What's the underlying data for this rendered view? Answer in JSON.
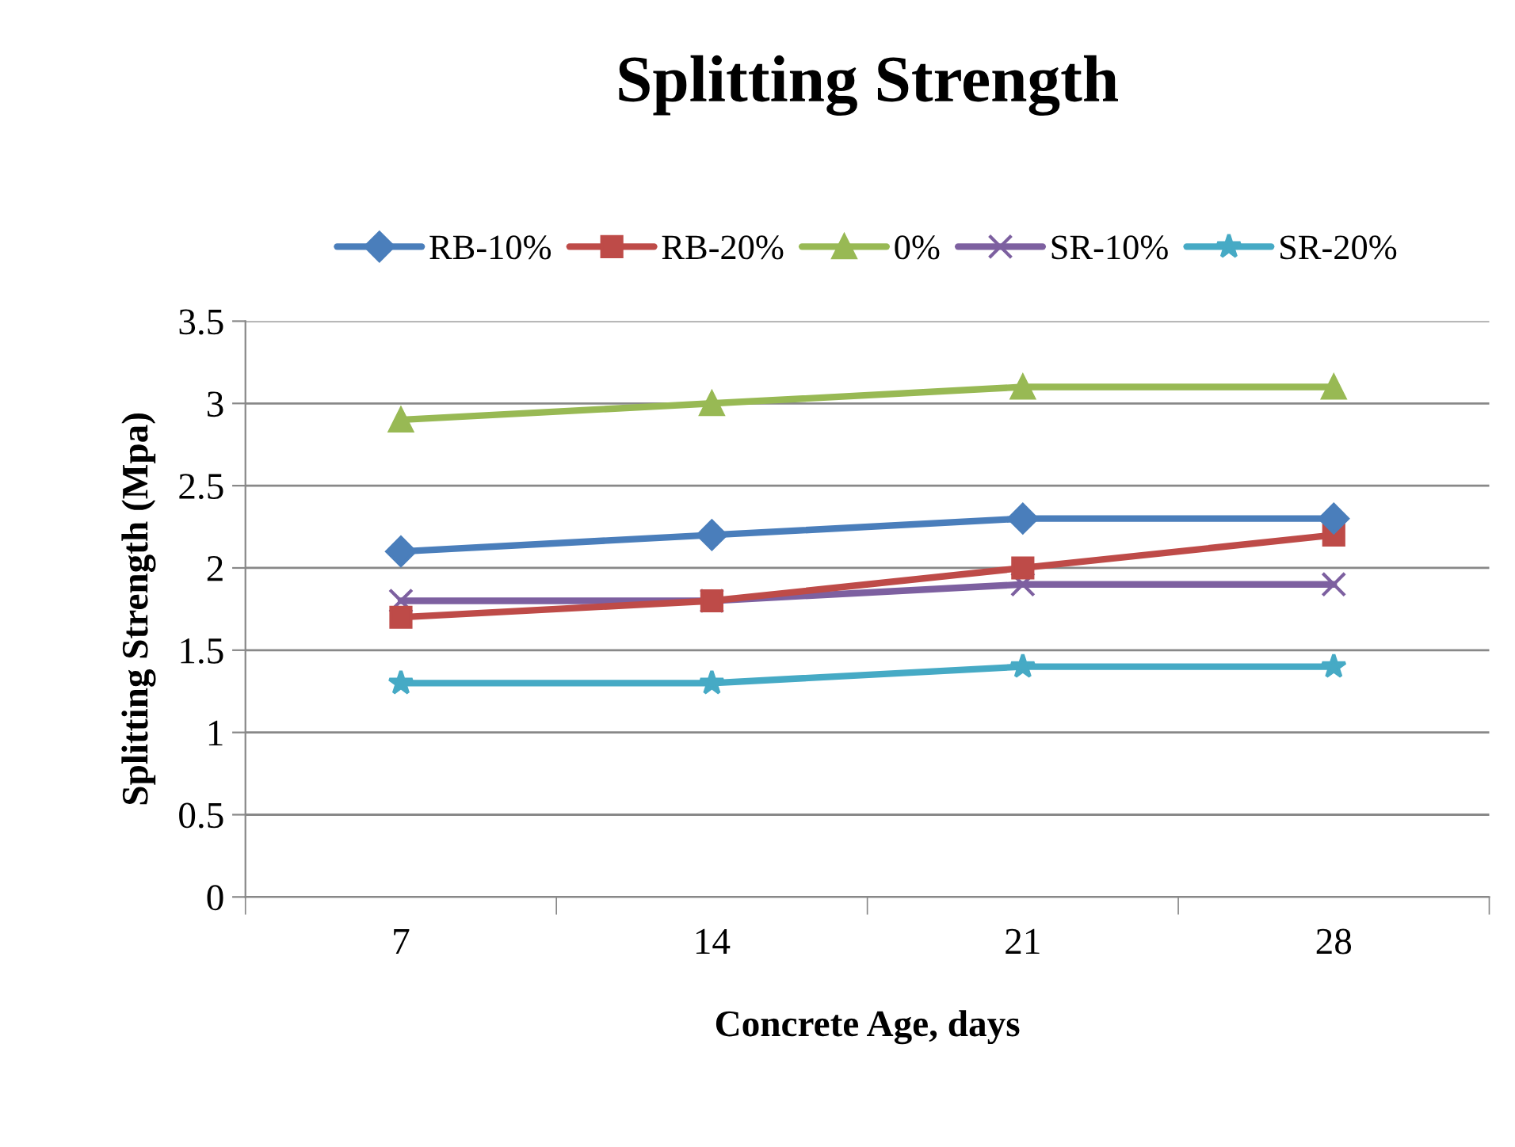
{
  "chart_data": {
    "type": "line",
    "title": "Splitting Strength",
    "xlabel": "Concrete Age, days",
    "ylabel": "Splitting Strength (Mpa)",
    "categories": [
      "7",
      "14",
      "21",
      "28"
    ],
    "series": [
      {
        "name": "RB-10%",
        "color": "#4a7ebb",
        "marker": "diamond",
        "values": [
          2.1,
          2.2,
          2.3,
          2.3
        ]
      },
      {
        "name": "RB-20%",
        "color": "#be4b48",
        "marker": "square",
        "values": [
          1.7,
          1.8,
          2.0,
          2.2
        ]
      },
      {
        "name": "0%",
        "color": "#98b954",
        "marker": "triangle",
        "values": [
          2.9,
          3.0,
          3.1,
          3.1
        ]
      },
      {
        "name": "SR-10%",
        "color": "#7d60a0",
        "marker": "cross",
        "values": [
          1.8,
          1.8,
          1.9,
          1.9
        ]
      },
      {
        "name": "SR-20%",
        "color": "#46aac5",
        "marker": "star",
        "values": [
          1.3,
          1.3,
          1.4,
          1.4
        ]
      }
    ],
    "ylim": [
      0,
      3.5
    ],
    "yticks": [
      0,
      0.5,
      1,
      1.5,
      2,
      2.5,
      3,
      3.5
    ],
    "grid": "y",
    "legend": "top"
  }
}
